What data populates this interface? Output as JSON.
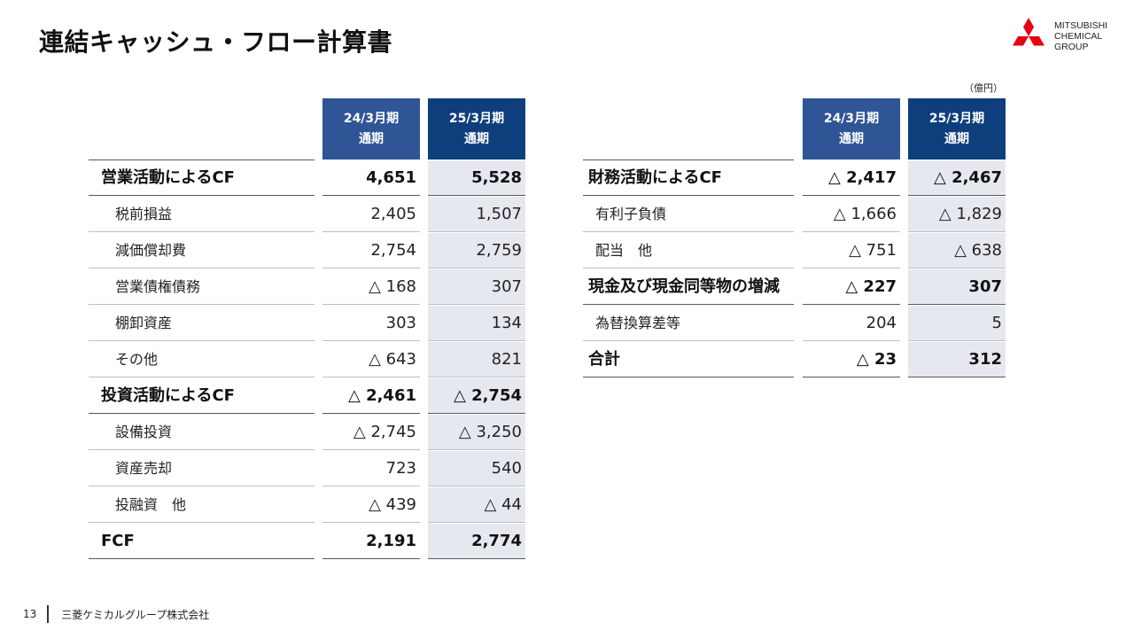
{
  "title": "連結キャッシュ・フロー計算書",
  "logo": {
    "lines": [
      "MITSUBISHI",
      "CHEMICAL",
      "GROUP"
    ],
    "color": "#e60012"
  },
  "unit": "（億円）",
  "periods": [
    {
      "line1": "24/3月期",
      "line2": "通期",
      "color": "#2f5597"
    },
    {
      "line1": "25/3月期",
      "line2": "通期",
      "color": "#0e3f7c"
    }
  ],
  "left_table": [
    {
      "label": "営業活動によるCF",
      "v24": "4,651",
      "v25": "5,528",
      "kind": "main"
    },
    {
      "label": "税前損益",
      "v24": "2,405",
      "v25": "1,507",
      "kind": "sub"
    },
    {
      "label": "減価償却費",
      "v24": "2,754",
      "v25": "2,759",
      "kind": "sub"
    },
    {
      "label": "営業債権債務",
      "v24": "△ 168",
      "v25": "307",
      "kind": "sub"
    },
    {
      "label": "棚卸資産",
      "v24": "303",
      "v25": "134",
      "kind": "sub"
    },
    {
      "label": "その他",
      "v24": "△ 643",
      "v25": "821",
      "kind": "sub"
    },
    {
      "label": "投資活動によるCF",
      "v24": "△ 2,461",
      "v25": "△ 2,754",
      "kind": "main"
    },
    {
      "label": "設備投資",
      "v24": "△ 2,745",
      "v25": "△ 3,250",
      "kind": "sub"
    },
    {
      "label": "資産売却",
      "v24": "723",
      "v25": "540",
      "kind": "sub"
    },
    {
      "label": "投融資　他",
      "v24": "△ 439",
      "v25": "△ 44",
      "kind": "sub"
    },
    {
      "label": "FCF",
      "v24": "2,191",
      "v25": "2,774",
      "kind": "main"
    }
  ],
  "right_table": [
    {
      "label": "財務活動によるCF",
      "v24": "△ 2,417",
      "v25": "△ 2,467",
      "kind": "main"
    },
    {
      "label": "有利子負債",
      "v24": "△ 1,666",
      "v25": "△ 1,829",
      "kind": "sub"
    },
    {
      "label": "配当　他",
      "v24": "△ 751",
      "v25": "△ 638",
      "kind": "sub"
    },
    {
      "label": "現金及び現金同等物の増減",
      "v24": "△ 227",
      "v25": "307",
      "kind": "main"
    },
    {
      "label": "為替換算差等",
      "v24": "204",
      "v25": "5",
      "kind": "sub"
    },
    {
      "label": "合計",
      "v24": "△ 23",
      "v25": "312",
      "kind": "main"
    }
  ],
  "footer": {
    "page": "13",
    "company": "三菱ケミカルグループ株式会社"
  }
}
